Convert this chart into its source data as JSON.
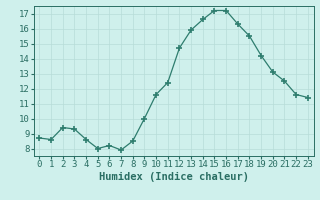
{
  "x": [
    0,
    1,
    2,
    3,
    4,
    5,
    6,
    7,
    8,
    9,
    10,
    11,
    12,
    13,
    14,
    15,
    16,
    17,
    18,
    19,
    20,
    21,
    22,
    23
  ],
  "y": [
    8.7,
    8.6,
    9.4,
    9.3,
    8.6,
    8.0,
    8.2,
    7.9,
    8.5,
    10.0,
    11.6,
    12.4,
    14.7,
    15.9,
    16.6,
    17.2,
    17.2,
    16.3,
    15.5,
    14.2,
    13.1,
    12.5,
    11.6,
    11.4
  ],
  "line_color": "#2e7d6e",
  "marker": "+",
  "marker_size": 4,
  "marker_lw": 1.2,
  "bg_color": "#cff0ec",
  "grid_color": "#b8ddd8",
  "xlabel": "Humidex (Indice chaleur)",
  "xlim": [
    -0.5,
    23.5
  ],
  "ylim": [
    7.5,
    17.5
  ],
  "yticks": [
    8,
    9,
    10,
    11,
    12,
    13,
    14,
    15,
    16,
    17
  ],
  "font_color": "#2a6e63",
  "tick_fontsize": 6.5,
  "label_fontsize": 7.5
}
